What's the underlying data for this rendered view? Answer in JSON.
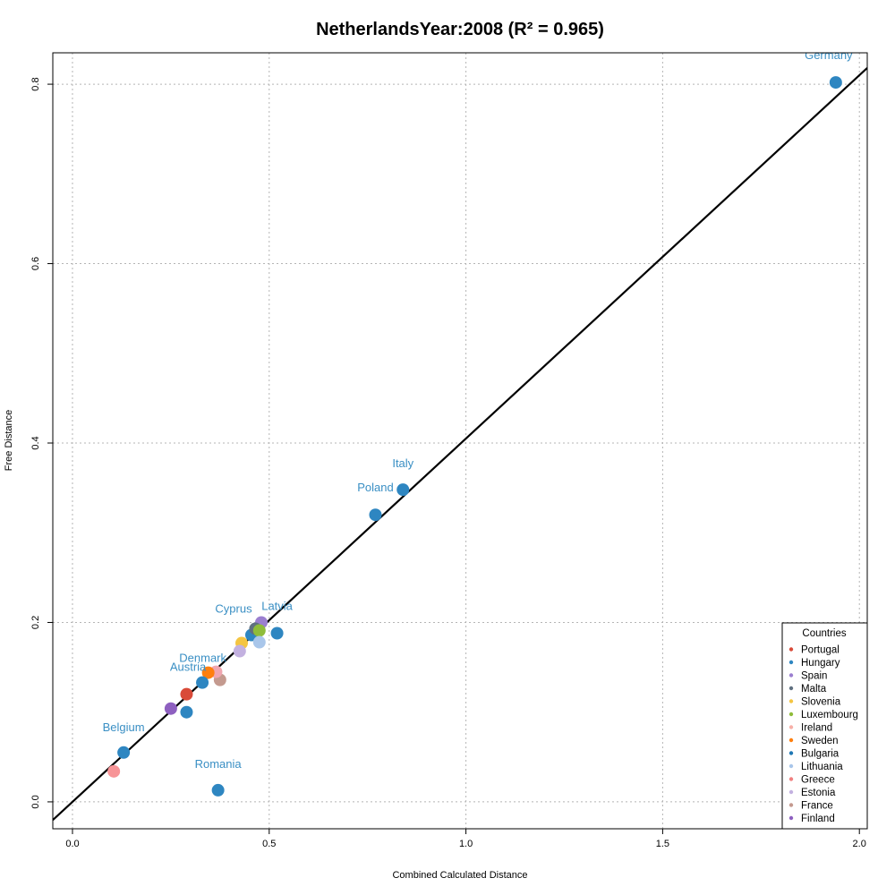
{
  "chart_data": {
    "type": "scatter",
    "title": "NetherlandsYear:2008 (R² = 0.965)",
    "xlabel": "Combined Calculated Distance",
    "ylabel": "Free Distance",
    "xlim": [
      -0.05,
      2.02
    ],
    "ylim": [
      -0.03,
      0.835
    ],
    "x_ticks": [
      {
        "value": 0.0,
        "label": "0.0"
      },
      {
        "value": 0.5,
        "label": "0.5"
      },
      {
        "value": 1.0,
        "label": "1.0"
      },
      {
        "value": 1.5,
        "label": "1.5"
      },
      {
        "value": 2.0,
        "label": "2.0"
      }
    ],
    "y_ticks": [
      {
        "value": 0.0,
        "label": "0.0"
      },
      {
        "value": 0.2,
        "label": "0.2"
      },
      {
        "value": 0.4,
        "label": "0.4"
      },
      {
        "value": 0.6,
        "label": "0.6"
      },
      {
        "value": 0.8,
        "label": "0.8"
      }
    ],
    "grid": true,
    "fit_line": {
      "intercept": 0.0,
      "slope": 0.405,
      "color": "#000000"
    },
    "label_color": "#3a8fc4",
    "points": [
      {
        "label": "Germany",
        "x": 1.94,
        "y": 0.802,
        "color": "#2e86c1"
      },
      {
        "label": "Italy",
        "x": 0.84,
        "y": 0.348,
        "color": "#2e86c1"
      },
      {
        "label": "Poland",
        "x": 0.77,
        "y": 0.32,
        "color": "#2e86c1"
      },
      {
        "label": "Latvia",
        "x": 0.52,
        "y": 0.188,
        "color": "#2e86c1"
      },
      {
        "label": "",
        "x": 0.48,
        "y": 0.2,
        "color": "#9b7fd0"
      },
      {
        "label": "Cyprus",
        "x": 0.455,
        "y": 0.186,
        "color": "#2e86c1"
      },
      {
        "label": "",
        "x": 0.465,
        "y": 0.193,
        "color": "#607080"
      },
      {
        "label": "",
        "x": 0.475,
        "y": 0.191,
        "color": "#8fbc3a"
      },
      {
        "label": "",
        "x": 0.475,
        "y": 0.178,
        "color": "#a9c6ea"
      },
      {
        "label": "",
        "x": 0.43,
        "y": 0.177,
        "color": "#f4c542"
      },
      {
        "label": "",
        "x": 0.425,
        "y": 0.168,
        "color": "#c3b1e0"
      },
      {
        "label": "",
        "x": 0.375,
        "y": 0.136,
        "color": "#c49a8f"
      },
      {
        "label": "",
        "x": 0.365,
        "y": 0.145,
        "color": "#f0a6b0"
      },
      {
        "label": "Denmark",
        "x": 0.345,
        "y": 0.144,
        "color": "#ff7f0e"
      },
      {
        "label": "Austria",
        "x": 0.33,
        "y": 0.133,
        "color": "#2e86c1"
      },
      {
        "label": "",
        "x": 0.29,
        "y": 0.12,
        "color": "#d94a38"
      },
      {
        "label": "",
        "x": 0.29,
        "y": 0.1,
        "color": "#2e86c1"
      },
      {
        "label": "",
        "x": 0.25,
        "y": 0.104,
        "color": "#8e60c0"
      },
      {
        "label": "Belgium",
        "x": 0.13,
        "y": 0.055,
        "color": "#2e86c1"
      },
      {
        "label": "",
        "x": 0.105,
        "y": 0.034,
        "color": "#f79497"
      },
      {
        "label": "Romania",
        "x": 0.37,
        "y": 0.013,
        "color": "#2e86c1"
      }
    ],
    "legend": {
      "title": "Countries",
      "placement": "bottom-right",
      "entries": [
        {
          "name": "Portugal",
          "color": "#d94a38"
        },
        {
          "name": "Hungary",
          "color": "#2e86c1"
        },
        {
          "name": "Spain",
          "color": "#9b7fd0"
        },
        {
          "name": "Malta",
          "color": "#607080"
        },
        {
          "name": "Slovenia",
          "color": "#f4c542"
        },
        {
          "name": "Luxembourg",
          "color": "#8fbc3a"
        },
        {
          "name": "Ireland",
          "color": "#f7b0a8"
        },
        {
          "name": "Sweden",
          "color": "#ff7f0e"
        },
        {
          "name": "Bulgaria",
          "color": "#1f77b4"
        },
        {
          "name": "Lithuania",
          "color": "#a9c6ea"
        },
        {
          "name": "Greece",
          "color": "#f08080"
        },
        {
          "name": "Estonia",
          "color": "#c3b1e0"
        },
        {
          "name": "France",
          "color": "#c49a8f"
        },
        {
          "name": "Finland",
          "color": "#8e60c0"
        }
      ]
    }
  }
}
